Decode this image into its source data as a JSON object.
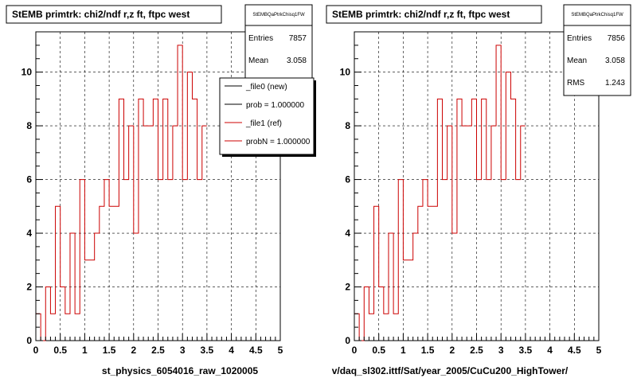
{
  "chart_data": [
    {
      "type": "histogram",
      "title": "StEMB primtrk: chi2/ndf r,z ft, ftpc west",
      "stats_box": {
        "name": "StEMBQaPtrkChisq1FW",
        "entries_label": "Entries",
        "entries": "7857",
        "mean_label": "Mean",
        "mean": "3.058"
      },
      "legend": [
        {
          "label": "_file0 (new)",
          "color": "#000000"
        },
        {
          "label": "prob = 1.000000",
          "color": "#000000"
        },
        {
          "label": "_file1 (ref)",
          "color": "#cc0000"
        },
        {
          "label": "probN = 1.000000",
          "color": "#cc0000"
        }
      ],
      "xlabel": "st_physics_6054016_raw_1020005",
      "xlim": [
        0,
        5
      ],
      "ylim": [
        0,
        11.5
      ],
      "xticks": [
        "0",
        "0.5",
        "1",
        "1.5",
        "2",
        "2.5",
        "3",
        "3.5",
        "4",
        "4.5",
        "5"
      ],
      "yticks": [
        "0",
        "2",
        "4",
        "6",
        "8",
        "10"
      ],
      "bin_width": 0.1,
      "values": [
        1,
        0,
        2,
        1,
        5,
        2,
        1,
        4,
        1,
        6,
        3,
        3,
        4,
        5,
        6,
        5,
        5,
        9,
        6,
        8,
        4,
        9,
        8,
        8,
        9,
        6,
        9,
        6,
        8,
        11,
        6,
        10,
        9,
        6,
        8
      ],
      "color": "#cc0000"
    },
    {
      "type": "histogram",
      "title": "StEMB primtrk: chi2/ndf r,z ft, ftpc west",
      "stats_box": {
        "name": "StEMBQaPtrkChisq1FW",
        "entries_label": "Entries",
        "entries": "7856",
        "mean_label": "Mean",
        "mean": "3.058",
        "rms_label": "RMS",
        "rms": "1.243"
      },
      "xlabel": "v/daq_sl302.ittf/Sat/year_2005/CuCu200_HighTower/",
      "xlim": [
        0,
        5
      ],
      "ylim": [
        0,
        11.5
      ],
      "xticks": [
        "0",
        "0.5",
        "1",
        "1.5",
        "2",
        "2.5",
        "3",
        "3.5",
        "4",
        "4.5",
        "5"
      ],
      "yticks": [
        "0",
        "2",
        "4",
        "6",
        "8",
        "10"
      ],
      "bin_width": 0.1,
      "values": [
        1,
        0,
        2,
        1,
        5,
        2,
        1,
        4,
        1,
        6,
        3,
        3,
        4,
        5,
        6,
        5,
        5,
        9,
        6,
        8,
        4,
        9,
        8,
        8,
        9,
        6,
        9,
        6,
        8,
        11,
        6,
        10,
        9,
        6,
        8
      ],
      "color": "#cc0000"
    }
  ]
}
